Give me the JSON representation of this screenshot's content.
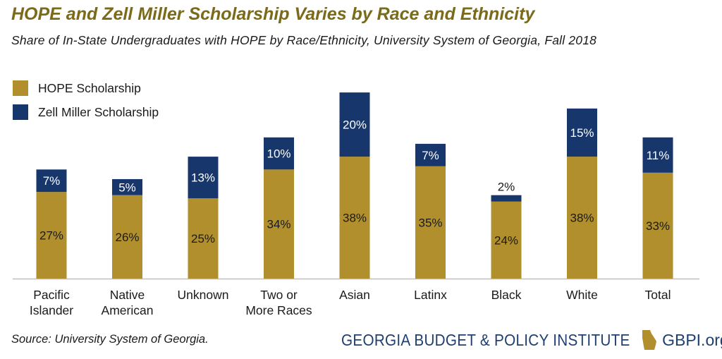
{
  "chart_data": {
    "type": "bar",
    "stacked": true,
    "title": "HOPE and Zell Miller Scholarship Varies by Race and Ethnicity",
    "subtitle": "Share of In-State Undergraduates with HOPE by Race/Ethnicity, University System of Georgia, Fall 2018",
    "categories": [
      [
        "Pacific",
        "Islander"
      ],
      [
        "Native",
        "American"
      ],
      [
        "Unknown"
      ],
      [
        "Two or",
        "More Races"
      ],
      [
        "Asian"
      ],
      [
        "Latinx"
      ],
      [
        "Black"
      ],
      [
        "White"
      ],
      [
        "Total"
      ]
    ],
    "series": [
      {
        "name": "HOPE Scholarship",
        "color": "#b08f2c",
        "values": [
          27,
          26,
          25,
          34,
          38,
          35,
          24,
          38,
          33
        ],
        "labels": [
          "27%",
          "26%",
          "25%",
          "34%",
          "38%",
          "35%",
          "24%",
          "38%",
          "33%"
        ]
      },
      {
        "name": "Zell Miller Scholarship",
        "color": "#17366b",
        "values": [
          7,
          5,
          13,
          10,
          20,
          7,
          2,
          15,
          11
        ],
        "labels": [
          "7%",
          "5%",
          "13%",
          "10%",
          "20%",
          "7%",
          "2%",
          "15%",
          "11%"
        ]
      }
    ],
    "ylim": [
      0,
      60
    ],
    "xlabel": "",
    "ylabel": "",
    "legend": "top-left",
    "grid": false
  },
  "source": "Source: University System of Georgia.",
  "footer": {
    "organization": "GEORGIA BUDGET & POLICY INSTITUTE",
    "website": "GBPI.org",
    "icon": "georgia-state-icon",
    "brand_color": "#1f3f6e",
    "icon_color": "#b08f2c"
  }
}
